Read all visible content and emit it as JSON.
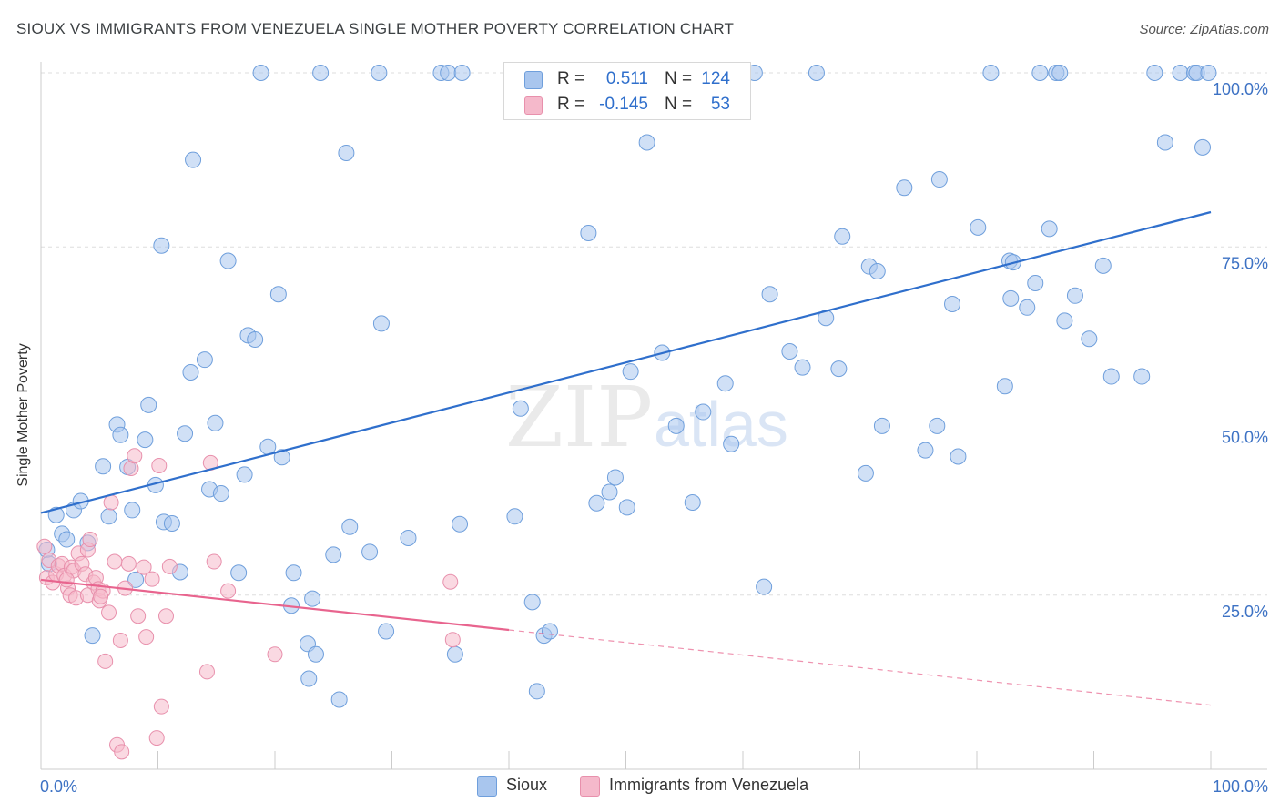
{
  "header": {
    "title": "SIOUX VS IMMIGRANTS FROM VENEZUELA SINGLE MOTHER POVERTY CORRELATION CHART",
    "source": "Source: ZipAtlas.com"
  },
  "legend": {
    "rows": [
      {
        "r_label": "R =",
        "r_value": "0.511",
        "n_label": "N =",
        "n_value": "124"
      },
      {
        "r_label": "R =",
        "r_value": "-0.145",
        "n_label": "N =",
        "n_value": "53"
      }
    ]
  },
  "watermark": {
    "zip": "ZIP",
    "atlas": "atlas"
  },
  "colors": {
    "sioux_fill": "#a9c6ee",
    "sioux_stroke": "#6f9fdc",
    "sioux_line": "#2f6fcc",
    "ven_fill": "#f5b9cb",
    "ven_stroke": "#e890ac",
    "ven_line": "#e8648e",
    "axis_label_blue": "#3d72c4",
    "grid": "#dddddd"
  },
  "chart_data": {
    "type": "scatter",
    "title": "SIOUX VS IMMIGRANTS FROM VENEZUELA SINGLE MOTHER POVERTY CORRELATION CHART",
    "xlabel": "",
    "ylabel": "Single Mother Poverty",
    "xlim": [
      0,
      100
    ],
    "ylim": [
      0,
      100
    ],
    "x_tick_labels": [
      "0.0%",
      "100.0%"
    ],
    "y_tick_labels": [
      "25.0%",
      "50.0%",
      "75.0%",
      "100.0%"
    ],
    "y_ticks": [
      25,
      50,
      75,
      100
    ],
    "grid": true,
    "legend_position": "top-center",
    "series": [
      {
        "name": "Sioux",
        "color": "#6f9fdc",
        "trend": {
          "x0": 0,
          "y0": 36.8,
          "x1": 100,
          "y1": 80.0,
          "solid_until": 100
        },
        "points": [
          [
            0.5,
            31.5
          ],
          [
            0.7,
            29.5
          ],
          [
            1.3,
            36.5
          ],
          [
            1.8,
            33.8
          ],
          [
            2.2,
            33.0
          ],
          [
            2.8,
            37.2
          ],
          [
            3.4,
            38.5
          ],
          [
            4.0,
            32.5
          ],
          [
            4.4,
            19.2
          ],
          [
            5.3,
            43.5
          ],
          [
            5.8,
            36.3
          ],
          [
            6.5,
            49.5
          ],
          [
            6.8,
            48.0
          ],
          [
            7.4,
            43.4
          ],
          [
            7.8,
            37.2
          ],
          [
            8.1,
            27.2
          ],
          [
            8.9,
            47.3
          ],
          [
            9.2,
            52.3
          ],
          [
            9.8,
            40.8
          ],
          [
            10.3,
            75.2
          ],
          [
            10.5,
            35.5
          ],
          [
            11.2,
            35.3
          ],
          [
            11.9,
            28.3
          ],
          [
            12.3,
            48.2
          ],
          [
            12.8,
            57.0
          ],
          [
            13.0,
            87.5
          ],
          [
            14.0,
            58.8
          ],
          [
            14.4,
            40.2
          ],
          [
            14.9,
            49.7
          ],
          [
            15.4,
            39.6
          ],
          [
            16.0,
            73.0
          ],
          [
            16.9,
            28.2
          ],
          [
            17.4,
            42.3
          ],
          [
            17.7,
            62.3
          ],
          [
            18.3,
            61.7
          ],
          [
            18.8,
            100
          ],
          [
            19.4,
            46.3
          ],
          [
            20.3,
            68.2
          ],
          [
            20.6,
            44.8
          ],
          [
            21.4,
            23.5
          ],
          [
            21.6,
            28.2
          ],
          [
            22.8,
            18.0
          ],
          [
            22.9,
            13.0
          ],
          [
            23.2,
            24.5
          ],
          [
            23.5,
            16.5
          ],
          [
            23.9,
            100
          ],
          [
            25.0,
            30.8
          ],
          [
            25.5,
            10.0
          ],
          [
            26.1,
            88.5
          ],
          [
            26.4,
            34.8
          ],
          [
            28.1,
            31.2
          ],
          [
            28.9,
            100
          ],
          [
            29.1,
            64.0
          ],
          [
            29.5,
            19.8
          ],
          [
            31.4,
            33.2
          ],
          [
            34.2,
            100
          ],
          [
            34.8,
            100
          ],
          [
            35.4,
            16.5
          ],
          [
            35.8,
            35.2
          ],
          [
            36.0,
            100
          ],
          [
            40.5,
            36.3
          ],
          [
            41.0,
            51.8
          ],
          [
            42.0,
            24.0
          ],
          [
            42.4,
            11.2
          ],
          [
            43.0,
            19.2
          ],
          [
            43.5,
            19.8
          ],
          [
            46.8,
            77.0
          ],
          [
            47.5,
            38.2
          ],
          [
            48.6,
            39.8
          ],
          [
            49.1,
            41.9
          ],
          [
            50.1,
            37.6
          ],
          [
            50.4,
            57.1
          ],
          [
            51.8,
            90.0
          ],
          [
            52.8,
            100
          ],
          [
            53.1,
            59.8
          ],
          [
            54.3,
            49.3
          ],
          [
            55.7,
            38.3
          ],
          [
            56.6,
            51.3
          ],
          [
            58.5,
            55.4
          ],
          [
            59.0,
            46.7
          ],
          [
            61.0,
            100
          ],
          [
            61.8,
            26.2
          ],
          [
            62.3,
            68.2
          ],
          [
            64.0,
            60.0
          ],
          [
            65.1,
            57.7
          ],
          [
            66.3,
            100
          ],
          [
            67.1,
            64.8
          ],
          [
            68.2,
            57.5
          ],
          [
            68.5,
            76.5
          ],
          [
            70.5,
            42.5
          ],
          [
            70.8,
            72.2
          ],
          [
            71.5,
            71.5
          ],
          [
            71.9,
            49.3
          ],
          [
            73.8,
            83.5
          ],
          [
            75.6,
            45.8
          ],
          [
            76.6,
            49.3
          ],
          [
            76.8,
            84.7
          ],
          [
            78.4,
            44.9
          ],
          [
            77.9,
            66.8
          ],
          [
            80.1,
            77.8
          ],
          [
            81.2,
            100
          ],
          [
            82.4,
            55.0
          ],
          [
            82.8,
            73.0
          ],
          [
            83.1,
            72.8
          ],
          [
            84.3,
            66.3
          ],
          [
            85.0,
            69.8
          ],
          [
            85.4,
            100
          ],
          [
            86.2,
            77.6
          ],
          [
            86.8,
            100
          ],
          [
            87.1,
            100
          ],
          [
            87.5,
            64.4
          ],
          [
            88.4,
            68.0
          ],
          [
            89.6,
            61.8
          ],
          [
            90.8,
            72.3
          ],
          [
            91.5,
            56.4
          ],
          [
            94.1,
            56.4
          ],
          [
            95.2,
            100
          ],
          [
            96.1,
            90.0
          ],
          [
            97.4,
            100
          ],
          [
            98.6,
            100
          ],
          [
            98.8,
            100
          ],
          [
            99.3,
            89.3
          ],
          [
            99.8,
            100
          ],
          [
            82.9,
            67.6
          ]
        ]
      },
      {
        "name": "Immigrants from Venezuela",
        "color": "#e890ac",
        "trend": {
          "x0": 0,
          "y0": 27.2,
          "x1": 100,
          "y1": 9.2,
          "solid_until": 40
        },
        "points": [
          [
            0.3,
            32.0
          ],
          [
            0.5,
            27.5
          ],
          [
            0.7,
            30.0
          ],
          [
            1.0,
            26.8
          ],
          [
            1.3,
            28.0
          ],
          [
            1.5,
            29.2
          ],
          [
            1.8,
            29.5
          ],
          [
            2.0,
            27.8
          ],
          [
            2.3,
            26.0
          ],
          [
            2.5,
            25.0
          ],
          [
            2.6,
            29.0
          ],
          [
            2.8,
            28.5
          ],
          [
            3.0,
            24.6
          ],
          [
            3.2,
            31.0
          ],
          [
            3.5,
            29.5
          ],
          [
            3.8,
            28.0
          ],
          [
            4.0,
            25.0
          ],
          [
            4.0,
            31.5
          ],
          [
            4.2,
            33.0
          ],
          [
            4.5,
            26.8
          ],
          [
            4.7,
            27.5
          ],
          [
            4.9,
            25.9
          ],
          [
            5.0,
            24.2
          ],
          [
            5.3,
            25.6
          ],
          [
            5.5,
            15.5
          ],
          [
            5.8,
            22.5
          ],
          [
            6.0,
            38.3
          ],
          [
            6.3,
            29.8
          ],
          [
            6.5,
            3.5
          ],
          [
            6.8,
            18.5
          ],
          [
            6.9,
            2.5
          ],
          [
            7.2,
            26.0
          ],
          [
            7.5,
            29.5
          ],
          [
            7.7,
            43.2
          ],
          [
            8.0,
            45.0
          ],
          [
            8.3,
            22.0
          ],
          [
            8.8,
            29.0
          ],
          [
            9.0,
            19.0
          ],
          [
            9.5,
            27.3
          ],
          [
            9.9,
            4.5
          ],
          [
            10.1,
            43.6
          ],
          [
            10.3,
            9.0
          ],
          [
            10.7,
            22.0
          ],
          [
            11.0,
            29.1
          ],
          [
            14.2,
            14.0
          ],
          [
            14.5,
            44.0
          ],
          [
            14.8,
            29.8
          ],
          [
            16.0,
            25.6
          ],
          [
            20.0,
            16.5
          ],
          [
            35.0,
            26.9
          ],
          [
            35.2,
            18.6
          ],
          [
            5.1,
            24.8
          ],
          [
            2.2,
            27.2
          ]
        ]
      }
    ]
  }
}
